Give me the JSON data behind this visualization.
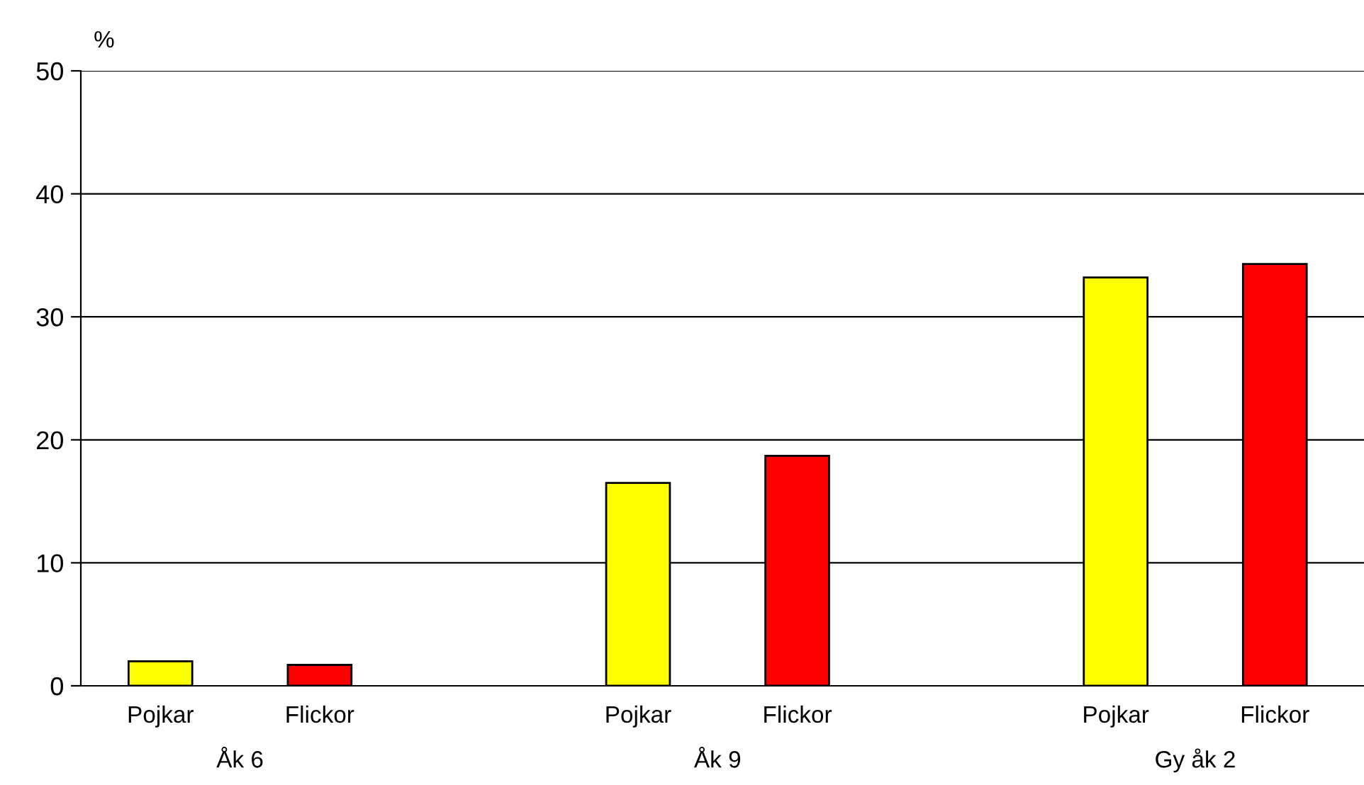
{
  "chart_data": {
    "type": "bar",
    "ylabel": "%",
    "categories": [
      "Pojkar",
      "Flickor",
      null,
      "Pojkar",
      "Flickor",
      null,
      "Pojkar",
      "Flickor"
    ],
    "values": [
      2.0,
      1.7,
      null,
      16.5,
      18.7,
      null,
      33.2,
      34.3
    ],
    "colors": [
      "#ffff00",
      "#ff0000",
      null,
      "#ffff00",
      "#ff0000",
      null,
      "#ffff00",
      "#ff0000"
    ],
    "annotations": [
      "Åk 6",
      "Åk 9",
      "Gy åk 2"
    ],
    "ylim": [
      0,
      50
    ],
    "yticks": [
      0,
      10,
      20,
      30,
      40,
      50
    ],
    "grid": "y"
  }
}
